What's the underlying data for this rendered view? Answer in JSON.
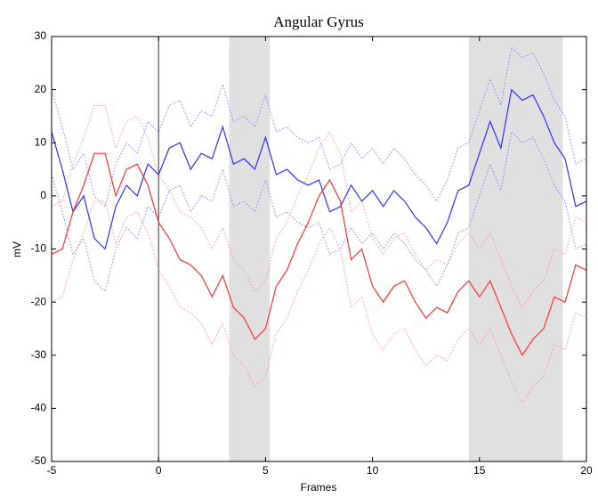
{
  "chart_data": {
    "type": "line",
    "title": "Angular Gyrus",
    "x_label": "Frames",
    "y_label": "mV",
    "x": [
      -5,
      -4.5,
      -4,
      -3.5,
      -3,
      -2.5,
      -2,
      -1.5,
      -1,
      -0.5,
      0,
      0.5,
      1,
      1.5,
      2,
      2.5,
      3,
      3.5,
      4,
      4.5,
      5,
      5.5,
      6,
      6.5,
      7,
      7.5,
      8,
      8.5,
      9,
      9.5,
      10,
      10.5,
      11,
      11.5,
      12,
      12.5,
      13,
      13.5,
      14,
      14.5,
      15,
      15.5,
      16,
      16.5,
      17,
      17.5,
      18,
      18.5,
      19,
      19.5,
      20
    ],
    "series": [
      {
        "color": "#3030ff",
        "style": "solid",
        "values": [
          12,
          5,
          -3,
          0,
          -8,
          -10,
          -2,
          2,
          0,
          6,
          4,
          9,
          10,
          5,
          8,
          7,
          13,
          6,
          7,
          5,
          11,
          4,
          5,
          3,
          2,
          3,
          -3,
          -2,
          2,
          -1,
          1,
          -2,
          1,
          -1,
          -4,
          -6,
          -9,
          -5,
          1,
          2,
          8,
          14,
          9,
          20,
          18,
          19,
          15,
          10,
          7,
          -2,
          -1
        ]
      },
      {
        "color": "#ff3030",
        "style": "solid",
        "values": [
          -11,
          -10,
          -3,
          2,
          8,
          8,
          0,
          5,
          6,
          2,
          -5,
          -8,
          -12,
          -13,
          -15,
          -19,
          -15,
          -21,
          -23,
          -27,
          -25,
          -17,
          -14,
          -9,
          -5,
          0,
          3,
          -1,
          -12,
          -10,
          -17,
          -20,
          -17,
          -16,
          -20,
          -23,
          -21,
          -22,
          -18,
          -16,
          -19,
          -16,
          -21,
          -26,
          -30,
          -27,
          -25,
          -19,
          -20,
          -13,
          -14
        ]
      },
      {
        "color": "#8080ff",
        "style": "dotted",
        "values": [
          20,
          13,
          5,
          8,
          0,
          -2,
          6,
          10,
          8,
          14,
          12,
          17,
          18,
          13,
          16,
          15,
          21,
          14,
          15,
          13,
          19,
          12,
          13,
          11,
          10,
          11,
          5,
          6,
          10,
          7,
          9,
          6,
          9,
          7,
          4,
          2,
          -1,
          3,
          9,
          10,
          16,
          22,
          17,
          28,
          26,
          27,
          23,
          18,
          15,
          6,
          7
        ]
      },
      {
        "color": "#8080ff",
        "style": "dotted",
        "values": [
          4,
          -3,
          -11,
          -8,
          -16,
          -18,
          -10,
          -6,
          -8,
          -2,
          -4,
          1,
          2,
          -3,
          0,
          -1,
          5,
          -2,
          -1,
          -3,
          3,
          -4,
          -3,
          -5,
          -6,
          -5,
          -11,
          -10,
          -6,
          -9,
          -7,
          -10,
          -7,
          -9,
          -12,
          -14,
          -17,
          -13,
          -7,
          -6,
          0,
          6,
          1,
          12,
          10,
          11,
          7,
          2,
          -1,
          -10,
          -9
        ]
      },
      {
        "color": "#ff9090",
        "style": "dotted",
        "values": [
          -2,
          -1,
          6,
          11,
          17,
          17,
          9,
          14,
          15,
          11,
          4,
          1,
          -3,
          -4,
          -6,
          -10,
          -6,
          -12,
          -14,
          -18,
          -16,
          -8,
          -5,
          0,
          4,
          9,
          12,
          8,
          -3,
          -1,
          -8,
          -11,
          -8,
          -7,
          -11,
          -14,
          -12,
          -13,
          -9,
          -7,
          -10,
          -7,
          -12,
          -17,
          -21,
          -18,
          -16,
          -10,
          -11,
          -4,
          -5
        ]
      },
      {
        "color": "#ff9090",
        "style": "dotted",
        "values": [
          -20,
          -19,
          -12,
          -7,
          -1,
          -1,
          -9,
          -4,
          -3,
          -7,
          -14,
          -17,
          -21,
          -22,
          -24,
          -28,
          -24,
          -30,
          -32,
          -36,
          -34,
          -26,
          -23,
          -18,
          -14,
          -9,
          -6,
          -10,
          -21,
          -19,
          -26,
          -29,
          -26,
          -25,
          -29,
          -32,
          -30,
          -31,
          -27,
          -25,
          -28,
          -25,
          -30,
          -35,
          -39,
          -36,
          -34,
          -28,
          -29,
          -22,
          -23
        ]
      }
    ],
    "shaded_regions": [
      [
        3.3,
        5.2
      ],
      [
        14.5,
        18.9
      ]
    ],
    "shade_color": "#e0e0e0",
    "vline": 0,
    "xlim": [
      -5,
      20
    ],
    "xticks": [
      -5,
      0,
      5,
      10,
      15,
      20
    ],
    "ylim": [
      -50,
      30
    ],
    "yticks": [
      -50,
      -40,
      -30,
      -20,
      -10,
      0,
      10,
      20,
      30
    ]
  }
}
